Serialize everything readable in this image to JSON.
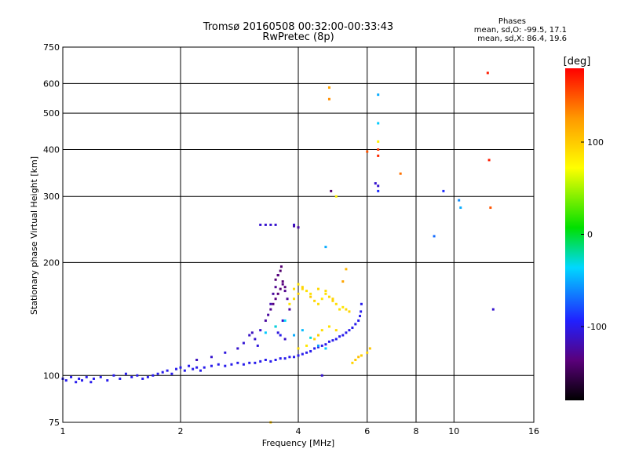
{
  "header": {
    "title": "Tromsø 20160508 00:32:00-00:33:43",
    "subtitle": "RwPretec (8p)"
  },
  "phases_box": {
    "heading": "Phases",
    "line_o": "mean, sd,O:  -99.5, 17.1",
    "line_x": "mean, sd,X:  86.4, 19.6"
  },
  "chart_data": {
    "type": "scatter",
    "title": "Tromsø 20160508 00:32:00-00:33:43",
    "subtitle": "RwPretec (8p)",
    "xlabel": "Frequency [MHz]",
    "ylabel": "Stationary phase Virtual Height [km]",
    "x_scale": "log",
    "y_scale": "log",
    "xlim": [
      1,
      16
    ],
    "ylim": [
      75,
      750
    ],
    "x_ticks": [
      1,
      2,
      4,
      6,
      8,
      10,
      16
    ],
    "x_tick_labels": [
      "1",
      "2",
      "4",
      "6",
      "8",
      "10",
      "16"
    ],
    "y_ticks": [
      75,
      100,
      200,
      300,
      400,
      500,
      600,
      750
    ],
    "y_tick_labels": [
      "75",
      "100",
      "200",
      "300",
      "400",
      "500",
      "600",
      "750"
    ],
    "grid": true,
    "colorbar": {
      "label": "[deg]",
      "range": [
        -180,
        180
      ],
      "ticks": [
        100,
        0,
        -100
      ],
      "tick_labels": [
        "100",
        "0",
        "-100"
      ]
    },
    "series": [
      {
        "x": [
          1.0,
          1.02,
          1.05,
          1.08,
          1.1,
          1.12,
          1.15,
          1.18,
          1.2,
          1.25,
          1.3,
          1.35,
          1.4,
          1.45,
          1.5,
          1.55,
          1.6,
          1.65,
          1.7,
          1.75,
          1.8,
          1.85,
          1.9,
          1.95,
          2.0,
          2.05,
          2.1,
          2.15,
          2.2,
          2.25,
          2.3,
          2.4,
          2.5,
          2.6,
          2.7,
          2.8,
          2.9,
          3.0,
          3.1,
          3.2,
          3.3,
          3.4,
          3.5,
          3.6,
          3.7,
          3.8,
          3.9,
          4.0,
          4.1,
          4.2,
          4.3,
          4.4,
          4.5,
          4.6,
          4.7,
          4.8,
          4.9,
          5.0,
          5.1,
          5.2,
          5.3,
          5.4,
          5.5,
          5.6,
          5.7,
          5.75,
          5.78,
          5.8
        ],
        "y": [
          98,
          97,
          99,
          96,
          98,
          97,
          99,
          96,
          98,
          99,
          97,
          100,
          98,
          101,
          99,
          100,
          98,
          99,
          100,
          101,
          102,
          103,
          101,
          104,
          105,
          103,
          106,
          104,
          105,
          103,
          105,
          106,
          107,
          106,
          107,
          108,
          107,
          108,
          108,
          109,
          110,
          109,
          110,
          111,
          111,
          112,
          112,
          113,
          114,
          115,
          116,
          118,
          119,
          120,
          121,
          123,
          124,
          125,
          127,
          128,
          130,
          132,
          134,
          137,
          140,
          144,
          148,
          155
        ],
        "phase": [
          -100,
          -100,
          -100,
          -100,
          -100,
          -100,
          -100,
          -100,
          -100,
          -100,
          -100,
          -100,
          -100,
          -100,
          -100,
          -100,
          -100,
          -100,
          -100,
          -100,
          -100,
          -100,
          -100,
          -100,
          -100,
          -100,
          -100,
          -100,
          -100,
          -100,
          -100,
          -100,
          -100,
          -100,
          -100,
          -100,
          -100,
          -100,
          -100,
          -100,
          -100,
          -100,
          -100,
          -100,
          -100,
          -100,
          -100,
          -100,
          -100,
          -100,
          -100,
          -100,
          -100,
          -100,
          -100,
          -100,
          -100,
          -100,
          -100,
          -100,
          -100,
          -100,
          -100,
          -100,
          -100,
          -100,
          -100,
          -100
        ]
      },
      {
        "x": [
          2.2,
          2.4,
          2.6,
          2.8,
          2.9,
          3.0,
          3.05,
          3.1,
          3.15,
          3.2,
          3.3,
          3.35,
          3.4,
          3.45,
          3.5,
          3.55,
          3.6,
          3.65,
          3.7,
          3.75,
          3.8,
          3.5,
          3.55,
          3.6,
          3.62,
          3.65,
          3.7,
          3.5,
          3.55,
          3.6,
          3.65,
          3.7,
          3.4,
          3.45,
          3.5,
          3.55
        ],
        "y": [
          110,
          112,
          115,
          118,
          122,
          128,
          130,
          125,
          120,
          132,
          140,
          145,
          150,
          155,
          160,
          165,
          170,
          175,
          168,
          160,
          150,
          180,
          185,
          190,
          195,
          178,
          172,
          135,
          130,
          128,
          140,
          125,
          155,
          165,
          172,
          185
        ],
        "phase": [
          -115,
          -110,
          -105,
          -110,
          -108,
          -112,
          -115,
          -110,
          -105,
          -110,
          -125,
          -125,
          -130,
          -135,
          -135,
          -138,
          -140,
          -135,
          -130,
          -128,
          -125,
          -140,
          -145,
          -142,
          -140,
          -138,
          -135,
          -110,
          -105,
          -100,
          -110,
          -112,
          -120,
          -125,
          -130,
          -135
        ]
      },
      {
        "x": [
          3.8,
          3.9,
          4.0,
          4.1,
          4.2,
          4.3,
          4.4,
          4.5,
          4.6,
          4.7,
          4.8,
          4.9,
          5.0,
          5.1,
          5.2,
          5.3,
          5.4,
          4.0,
          4.2,
          4.4,
          4.5,
          4.6,
          4.8,
          5.0,
          5.5,
          5.6,
          5.7,
          5.8,
          6.0,
          6.1,
          3.9,
          4.0,
          4.1,
          4.3,
          4.5,
          4.7,
          4.9,
          5.2,
          5.3
        ],
        "y": [
          155,
          160,
          165,
          170,
          168,
          162,
          158,
          155,
          160,
          165,
          162,
          158,
          155,
          150,
          152,
          150,
          148,
          118,
          120,
          125,
          128,
          132,
          135,
          132,
          108,
          110,
          112,
          113,
          115,
          118,
          170,
          175,
          172,
          165,
          170,
          168,
          160,
          178,
          192
        ],
        "phase": [
          85,
          90,
          95,
          92,
          88,
          100,
          95,
          90,
          85,
          88,
          92,
          95,
          90,
          88,
          85,
          92,
          95,
          90,
          85,
          95,
          100,
          90,
          88,
          92,
          95,
          100,
          105,
          98,
          95,
          102,
          90,
          85,
          95,
          88,
          92,
          90,
          95,
          120,
          110
        ]
      },
      {
        "x": [
          3.3,
          3.5,
          3.7,
          3.9,
          4.1,
          4.3,
          4.5,
          4.7
        ],
        "y": [
          130,
          135,
          140,
          128,
          132,
          126,
          120,
          118
        ],
        "phase": [
          -40,
          -30,
          -35,
          -50,
          -45,
          -30,
          -55,
          -40
        ]
      },
      {
        "x": [
          4.8,
          4.8,
          6.0,
          6.4,
          6.4,
          6.4,
          6.4,
          6.4,
          6.4,
          6.4,
          7.3,
          8.9,
          9.4,
          10.3,
          10.4,
          12.2,
          12.3,
          12.4,
          12.6,
          3.2,
          3.3,
          3.4,
          3.5,
          3.9,
          3.9,
          4.0,
          4.7,
          4.85,
          4.6,
          5.0,
          6.3,
          3.4
        ],
        "y": [
          585,
          545,
          395,
          560,
          470,
          420,
          400,
          385,
          320,
          310,
          345,
          235,
          310,
          293,
          280,
          640,
          375,
          280,
          150,
          252,
          252,
          252,
          252,
          252,
          250,
          248,
          220,
          310,
          100,
          300,
          325,
          75
        ],
        "phase": [
          120,
          130,
          150,
          -50,
          -40,
          80,
          160,
          165,
          -110,
          -90,
          140,
          -70,
          -90,
          -60,
          -50,
          170,
          170,
          150,
          -110,
          -110,
          -110,
          -110,
          -110,
          -110,
          -120,
          -125,
          -50,
          -140,
          -110,
          80,
          -110,
          100
        ]
      }
    ]
  }
}
